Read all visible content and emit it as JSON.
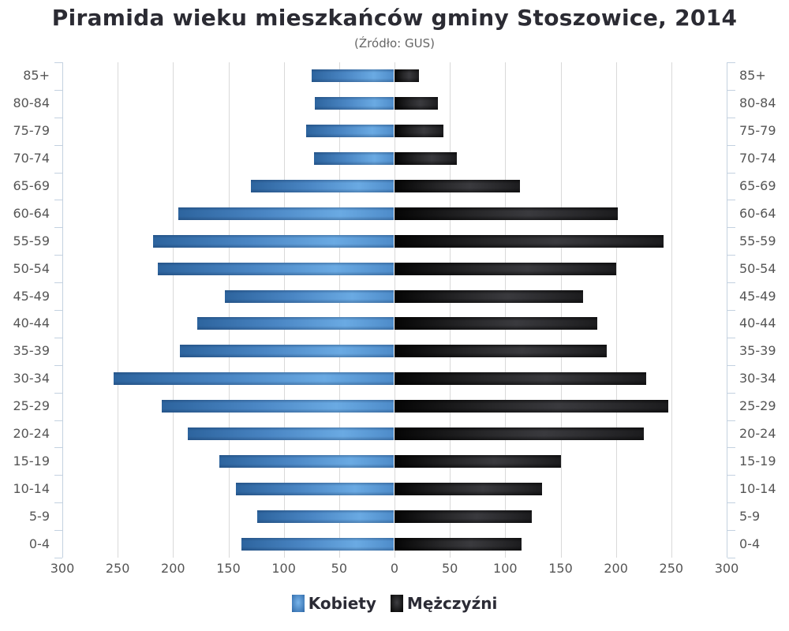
{
  "chart_data": {
    "type": "bar",
    "orientation": "horizontal",
    "subtype": "population-pyramid",
    "title": "Piramida wieku mieszkańców gminy Stoszowice, 2014",
    "subtitle": "(Źródło: GUS)",
    "xlabel": "",
    "ylabel": "",
    "xlim": [
      -300,
      300
    ],
    "x_ticks": [
      "300",
      "250",
      "200",
      "150",
      "100",
      "50",
      "0",
      "50",
      "100",
      "150",
      "200",
      "250",
      "300"
    ],
    "grid": true,
    "legend_position": "bottom",
    "categories": [
      "85+",
      "80-84",
      "75-79",
      "70-74",
      "65-69",
      "60-64",
      "55-59",
      "50-54",
      "45-49",
      "40-44",
      "35-39",
      "30-34",
      "25-29",
      "20-24",
      "15-19",
      "10-14",
      "5-9",
      "0-4"
    ],
    "series": [
      {
        "name": "Kobiety",
        "side": "left",
        "color": "#4a86c4",
        "values": [
          75,
          72,
          80,
          73,
          130,
          195,
          218,
          214,
          153,
          178,
          194,
          254,
          210,
          187,
          158,
          143,
          124,
          138
        ]
      },
      {
        "name": "Mężczyźni",
        "side": "right",
        "color": "#1c1c1e",
        "values": [
          22,
          39,
          44,
          56,
          113,
          202,
          243,
          200,
          170,
          183,
          192,
          227,
          247,
          225,
          150,
          133,
          124,
          115
        ]
      }
    ]
  },
  "header": {
    "title": "Piramida wieku mieszkańców gminy Stoszowice, 2014",
    "subtitle": "(Źródło: GUS)"
  },
  "legend": {
    "items": [
      {
        "label": "Kobiety",
        "color": "#4a86c4"
      },
      {
        "label": "Mężczyźni",
        "color": "#1c1c1e"
      }
    ]
  }
}
